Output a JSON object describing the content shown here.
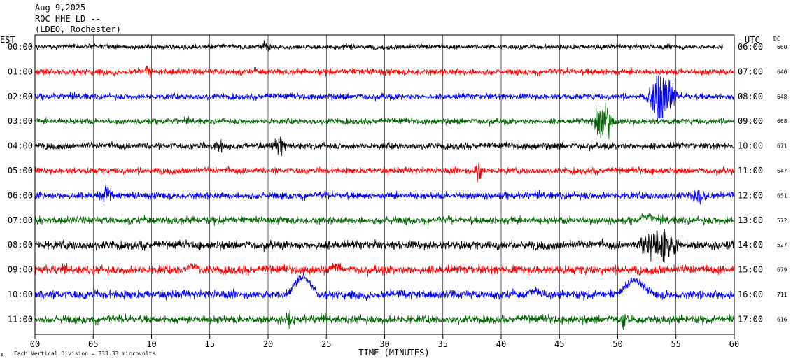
{
  "header": {
    "date": "Aug 9,2025",
    "station": "ROC HHE LD --",
    "network": "(LDEO, Rochester)"
  },
  "axes": {
    "left_tz": "EST",
    "right_tz": "UTC",
    "dc_label": "DC",
    "x_title": "TIME (MINUTES)",
    "x_ticks": [
      "00",
      "05",
      "10",
      "15",
      "20",
      "25",
      "30",
      "35",
      "40",
      "45",
      "50",
      "55",
      "60"
    ]
  },
  "footer": {
    "scale_note": "Each Vertical Division =  333.33 microvolts"
  },
  "colors": {
    "black": "#000000",
    "red": "#ff0000",
    "blue": "#0000ff",
    "green": "#006400"
  },
  "chart_data": {
    "type": "line",
    "title": "Aug 9,2025 ROC HHE LD --",
    "xlabel": "TIME (MINUTES)",
    "xlim": [
      0,
      60
    ],
    "x_tick_step": 5,
    "vertical_division_microvolts": 333.33,
    "series": [
      {
        "est": "00:00",
        "utc": "06:00",
        "dc": "660",
        "color": "#000000",
        "amplitude": 0.22,
        "end_minute": 59,
        "events": [
          {
            "t": 19.8,
            "amp": 0.25,
            "dur": 0.6,
            "kind": "burst"
          }
        ]
      },
      {
        "est": "01:00",
        "utc": "07:00",
        "dc": "640",
        "color": "#ff0000",
        "amplitude": 0.3,
        "events": [
          {
            "t": 9.7,
            "amp": 0.35,
            "dur": 0.5,
            "kind": "burst"
          }
        ]
      },
      {
        "est": "02:00",
        "utc": "08:00",
        "dc": "648",
        "color": "#0000ff",
        "amplitude": 0.28,
        "events": [
          {
            "t": 53.8,
            "amp": 1.5,
            "dur": 1.6,
            "kind": "burst"
          }
        ]
      },
      {
        "est": "03:00",
        "utc": "09:00",
        "dc": "668",
        "color": "#006400",
        "amplitude": 0.28,
        "events": [
          {
            "t": 48.8,
            "amp": 0.9,
            "dur": 1.4,
            "kind": "burst"
          }
        ]
      },
      {
        "est": "04:00",
        "utc": "10:00",
        "dc": "671",
        "color": "#000000",
        "amplitude": 0.3,
        "events": [
          {
            "t": 21.0,
            "amp": 0.5,
            "dur": 0.8,
            "kind": "burst"
          },
          {
            "t": 15.8,
            "amp": 0.4,
            "dur": 0.6,
            "kind": "burst"
          }
        ]
      },
      {
        "est": "05:00",
        "utc": "11:00",
        "dc": "647",
        "color": "#ff0000",
        "amplitude": 0.3,
        "events": [
          {
            "t": 38.0,
            "amp": 0.8,
            "dur": 0.5,
            "kind": "burst"
          }
        ]
      },
      {
        "est": "06:00",
        "utc": "12:00",
        "dc": "651",
        "color": "#0000ff",
        "amplitude": 0.33,
        "events": [
          {
            "t": 6.2,
            "amp": 0.5,
            "dur": 0.8,
            "kind": "burst"
          },
          {
            "t": 57.0,
            "amp": 0.4,
            "dur": 0.8,
            "kind": "burst"
          }
        ]
      },
      {
        "est": "07:00",
        "utc": "13:00",
        "dc": "572",
        "color": "#006400",
        "amplitude": 0.35,
        "events": [
          {
            "t": 52.5,
            "amp": 0.35,
            "dur": 1.2,
            "kind": "drift"
          }
        ]
      },
      {
        "est": "08:00",
        "utc": "14:00",
        "dc": "527",
        "color": "#000000",
        "amplitude": 0.4,
        "events": [
          {
            "t": 53.5,
            "amp": 0.8,
            "dur": 2.5,
            "kind": "burst"
          }
        ]
      },
      {
        "est": "09:00",
        "utc": "15:00",
        "dc": "679",
        "color": "#ff0000",
        "amplitude": 0.4,
        "events": [
          {
            "t": 13.5,
            "amp": 0.45,
            "dur": 1.0,
            "kind": "drift"
          },
          {
            "t": 25.8,
            "amp": 0.35,
            "dur": 1.0,
            "kind": "drift"
          }
        ]
      },
      {
        "est": "10:00",
        "utc": "16:00",
        "dc": "711",
        "color": "#0000ff",
        "amplitude": 0.4,
        "events": [
          {
            "t": 23.0,
            "amp": 1.1,
            "dur": 1.6,
            "kind": "pulse"
          },
          {
            "t": 51.5,
            "amp": 0.9,
            "dur": 1.8,
            "kind": "pulse"
          },
          {
            "t": 43.0,
            "amp": 0.35,
            "dur": 1.2,
            "kind": "drift"
          }
        ]
      },
      {
        "est": "11:00",
        "utc": "17:00",
        "dc": "616",
        "color": "#006400",
        "amplitude": 0.38,
        "events": [
          {
            "t": 21.8,
            "amp": 0.45,
            "dur": 0.6,
            "kind": "burst"
          },
          {
            "t": 50.5,
            "amp": 0.4,
            "dur": 0.6,
            "kind": "burst"
          }
        ]
      }
    ]
  }
}
